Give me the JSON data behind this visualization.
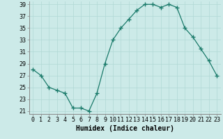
{
  "x": [
    0,
    1,
    2,
    3,
    4,
    5,
    6,
    7,
    8,
    9,
    10,
    11,
    12,
    13,
    14,
    15,
    16,
    17,
    18,
    19,
    20,
    21,
    22,
    23
  ],
  "y": [
    28,
    27,
    25,
    24.5,
    24,
    21.5,
    21.5,
    21,
    24,
    29,
    33,
    35,
    36.5,
    38,
    39,
    39,
    38.5,
    39,
    38.5,
    35,
    33.5,
    31.5,
    29.5,
    27
  ],
  "line_color": "#1a7a6a",
  "marker": "+",
  "marker_size": 4,
  "bg_color": "#cceae8",
  "grid_color": "#b0d8d5",
  "xlabel": "Humidex (Indice chaleur)",
  "ylim": [
    21,
    39
  ],
  "yticks": [
    21,
    23,
    25,
    27,
    29,
    31,
    33,
    35,
    37,
    39
  ],
  "xticks": [
    0,
    1,
    2,
    3,
    4,
    5,
    6,
    7,
    8,
    9,
    10,
    11,
    12,
    13,
    14,
    15,
    16,
    17,
    18,
    19,
    20,
    21,
    22,
    23
  ],
  "xlabel_fontsize": 7,
  "tick_fontsize": 6
}
